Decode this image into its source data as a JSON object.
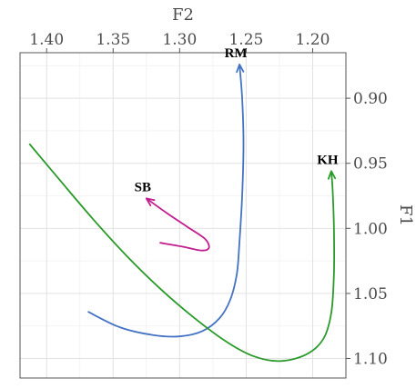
{
  "chart_data": {
    "type": "line",
    "xlabel": "F2",
    "ylabel": "F1",
    "x_axis_position": "top",
    "y_axis_position": "right",
    "x_reversed": true,
    "y_reversed": true,
    "xlim": [
      1.175,
      1.42
    ],
    "ylim": [
      0.865,
      1.115
    ],
    "grid": true,
    "xticks": [
      {
        "value": 1.4,
        "label": "1.40"
      },
      {
        "value": 1.35,
        "label": "1.35"
      },
      {
        "value": 1.3,
        "label": "1.30"
      },
      {
        "value": 1.25,
        "label": "1.25"
      },
      {
        "value": 1.2,
        "label": "1.20"
      }
    ],
    "yticks": [
      {
        "value": 0.9,
        "label": "0.90"
      },
      {
        "value": 0.95,
        "label": "0.95"
      },
      {
        "value": 1.0,
        "label": "1.00"
      },
      {
        "value": 1.05,
        "label": "1.05"
      },
      {
        "value": 1.1,
        "label": "1.10"
      }
    ],
    "series": [
      {
        "name": "RM",
        "color": "#4472c4",
        "points": [
          [
            1.369,
            1.064
          ],
          [
            1.345,
            1.076
          ],
          [
            1.32,
            1.082
          ],
          [
            1.3,
            1.083
          ],
          [
            1.283,
            1.079
          ],
          [
            1.27,
            1.069
          ],
          [
            1.262,
            1.055
          ],
          [
            1.257,
            1.035
          ],
          [
            1.255,
            1.01
          ],
          [
            1.253,
            0.975
          ],
          [
            1.252,
            0.935
          ],
          [
            1.253,
            0.9
          ],
          [
            1.255,
            0.874
          ]
        ]
      },
      {
        "name": "KH",
        "color": "#2a9a2a",
        "points": [
          [
            1.413,
            0.935
          ],
          [
            1.39,
            0.963
          ],
          [
            1.365,
            0.993
          ],
          [
            1.34,
            1.021
          ],
          [
            1.315,
            1.046
          ],
          [
            1.29,
            1.068
          ],
          [
            1.265,
            1.087
          ],
          [
            1.245,
            1.098
          ],
          [
            1.225,
            1.102
          ],
          [
            1.205,
            1.097
          ],
          [
            1.192,
            1.085
          ],
          [
            1.186,
            1.065
          ],
          [
            1.184,
            1.035
          ],
          [
            1.184,
            1.0
          ],
          [
            1.185,
            0.97
          ],
          [
            1.186,
            0.956
          ]
        ]
      },
      {
        "name": "SB",
        "color": "#c21d8f",
        "points": [
          [
            1.315,
            1.011
          ],
          [
            1.298,
            1.014
          ],
          [
            1.284,
            1.017
          ],
          [
            1.278,
            1.015
          ],
          [
            1.281,
            1.008
          ],
          [
            1.294,
            0.999
          ],
          [
            1.31,
            0.988
          ],
          [
            1.325,
            0.977
          ]
        ]
      }
    ]
  }
}
